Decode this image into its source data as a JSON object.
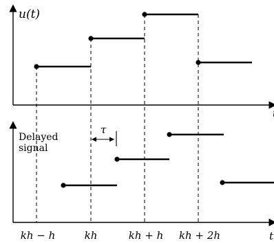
{
  "upper_plot": {
    "y_axis_label": "u(t)",
    "x_axis_label": "t",
    "steps": [
      {
        "from": "kh-h",
        "to": "kh",
        "level": 2
      },
      {
        "from": "kh",
        "to": "kh+h",
        "level": 3
      },
      {
        "from": "kh+h",
        "to": "kh+2h",
        "level": 4
      },
      {
        "from": "kh+2h",
        "to": "kh+3h",
        "level": 2
      }
    ]
  },
  "lower_plot": {
    "y_axis_label_line1": "Delayed",
    "y_axis_label_line2": "signal",
    "x_axis_label": "t",
    "delay_label": "τ",
    "steps": [
      {
        "from": "kh-h+τ",
        "to": "kh+τ",
        "level": 1
      },
      {
        "from": "kh+τ",
        "to": "kh+h+τ",
        "level": 2
      },
      {
        "from": "kh+h+τ",
        "to": "kh+2h+τ",
        "level": 3
      },
      {
        "from": "kh+2h+τ",
        "to": "kh+3h+τ",
        "level": 1
      }
    ]
  },
  "x_tick_labels": [
    "kh − h",
    "kh",
    "kh + h",
    "kh + 2h"
  ],
  "colors": {
    "line": "#000000",
    "dashed": "#000000",
    "background": "#ffffff"
  }
}
